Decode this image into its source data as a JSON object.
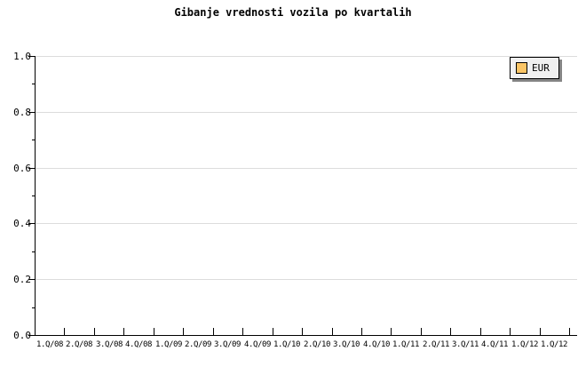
{
  "title": "Gibanje vrednosti vozila po kvartalih",
  "legend": {
    "label": "EUR",
    "swatch_color": "#FBC566"
  },
  "colors": {
    "background": "#ffffff",
    "axis": "#000000",
    "text": "#000000",
    "grid": "#dcdcdc",
    "legend_bg": "#f0f0f0",
    "legend_border": "#000000",
    "legend_shadow": "#848484",
    "series_eur": "#FBC566"
  },
  "chart_data": {
    "type": "bar",
    "title": "Gibanje vrednosti vozila po kvartalih",
    "categories": [
      "1.Q/08",
      "2.Q/08",
      "3.Q/08",
      "4.Q/08",
      "1.Q/09",
      "2.Q/09",
      "3.Q/09",
      "4.Q/09",
      "1.Q/10",
      "2.Q/10",
      "3.Q/10",
      "4.Q/10",
      "1.Q/11",
      "2.Q/11",
      "3.Q/11",
      "4.Q/11",
      "1.Q/12",
      "1.Q/12"
    ],
    "series": [
      {
        "name": "EUR",
        "color": "#FBC566",
        "values": []
      }
    ],
    "xlabel": "",
    "ylabel": "",
    "ylim": [
      0.0,
      1.0
    ],
    "ytick_labels": [
      "0.0",
      "0.2",
      "0.4",
      "0.6",
      "0.8",
      "1.0"
    ],
    "ytick_interval": 0.2,
    "y_minor_tick_interval": 0.1,
    "grid": "horizontal-major",
    "legend_position": "top-right",
    "plot_area_empty": true
  }
}
